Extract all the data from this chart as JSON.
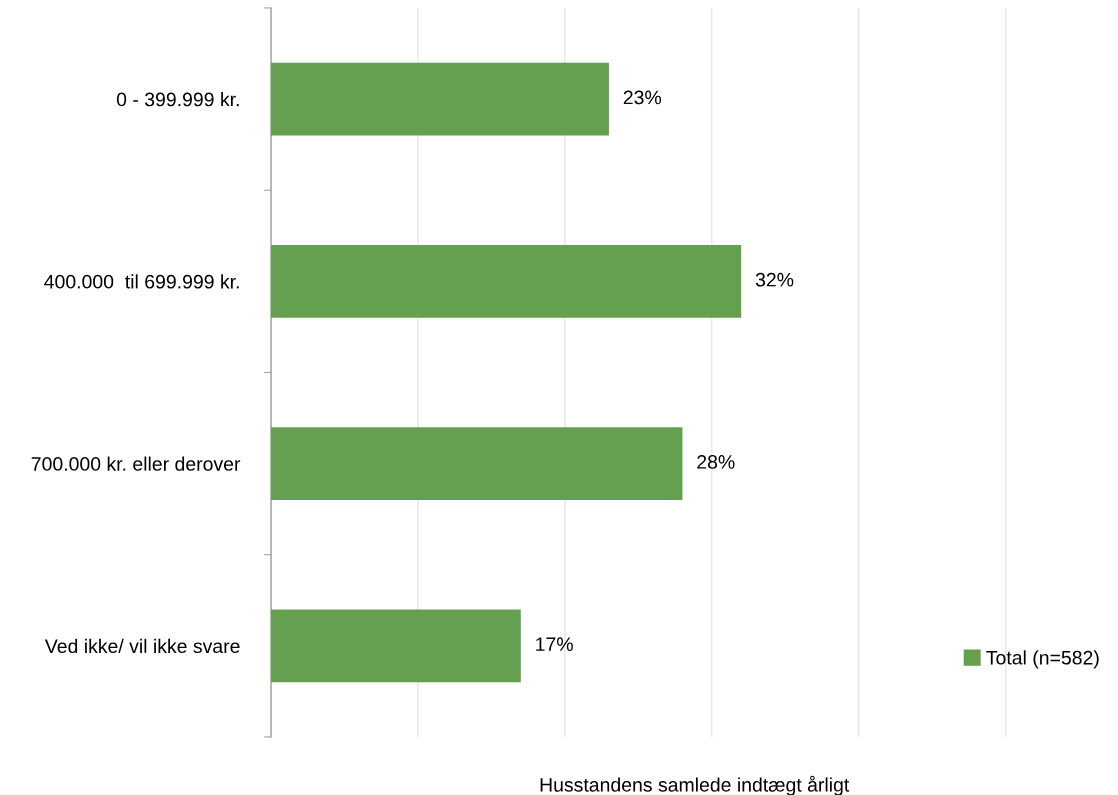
{
  "chart_data": {
    "type": "bar",
    "orientation": "horizontal",
    "xlabel": "Husstandens samlede indtægt årligt",
    "categories": [
      "0 - 399.999 kr.",
      "400.000  til 699.999 kr.",
      "700.000 kr. eller derover",
      "Ved ikke/ vil ikke svare"
    ],
    "series": [
      {
        "name": "Total (n=582)",
        "color": "#64a050",
        "values": [
          23,
          32,
          28,
          17
        ],
        "value_labels": [
          "23%",
          "32%",
          "28%",
          "17%"
        ]
      }
    ],
    "grid": "x",
    "legend": "bottom right",
    "tick_labels": "y"
  }
}
